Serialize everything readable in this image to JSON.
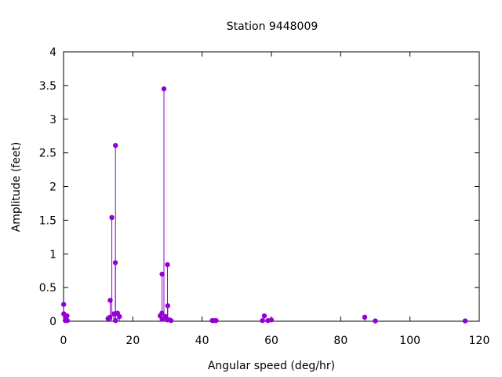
{
  "chart_data": {
    "type": "scatter",
    "style": "impulses-with-points",
    "title": "Station 9448009",
    "xlabel": "Angular speed (deg/hr)",
    "ylabel": "Amplitude (feet)",
    "xlim": [
      0,
      120
    ],
    "ylim": [
      0,
      4
    ],
    "x_ticks": [
      "0",
      "20",
      "40",
      "60",
      "80",
      "100",
      "120"
    ],
    "y_ticks": [
      "0",
      "0.5",
      "1",
      "1.5",
      "2",
      "2.5",
      "3",
      "3.5",
      "4"
    ],
    "grid": false,
    "legend": "none",
    "color": "#9400d3",
    "points": [
      {
        "x": 0.04,
        "y": 0.25
      },
      {
        "x": 0.08,
        "y": 0.11
      },
      {
        "x": 0.5,
        "y": 0.01
      },
      {
        "x": 0.55,
        "y": 0.05
      },
      {
        "x": 1.0,
        "y": 0.08
      },
      {
        "x": 1.1,
        "y": 0.01
      },
      {
        "x": 12.85,
        "y": 0.04
      },
      {
        "x": 13.4,
        "y": 0.06
      },
      {
        "x": 13.47,
        "y": 0.31
      },
      {
        "x": 13.94,
        "y": 1.54
      },
      {
        "x": 14.49,
        "y": 0.11
      },
      {
        "x": 14.9,
        "y": 0.11
      },
      {
        "x": 14.96,
        "y": 0.87
      },
      {
        "x": 15.0,
        "y": 2.61
      },
      {
        "x": 15.0,
        "y": 0.01
      },
      {
        "x": 15.59,
        "y": 0.12
      },
      {
        "x": 16.14,
        "y": 0.07
      },
      {
        "x": 27.9,
        "y": 0.08
      },
      {
        "x": 28.4,
        "y": 0.12
      },
      {
        "x": 28.44,
        "y": 0.7
      },
      {
        "x": 28.51,
        "y": 0.03
      },
      {
        "x": 28.98,
        "y": 3.45
      },
      {
        "x": 29.46,
        "y": 0.07
      },
      {
        "x": 29.53,
        "y": 0.06
      },
      {
        "x": 29.96,
        "y": 0.02
      },
      {
        "x": 30.0,
        "y": 0.84
      },
      {
        "x": 30.08,
        "y": 0.23
      },
      {
        "x": 30.6,
        "y": 0.02
      },
      {
        "x": 31.02,
        "y": 0.01
      },
      {
        "x": 42.93,
        "y": 0.01
      },
      {
        "x": 43.48,
        "y": 0.01
      },
      {
        "x": 44.03,
        "y": 0.01
      },
      {
        "x": 57.42,
        "y": 0.01
      },
      {
        "x": 57.97,
        "y": 0.08
      },
      {
        "x": 58.98,
        "y": 0.01
      },
      {
        "x": 59.98,
        "y": 0.02
      },
      {
        "x": 86.95,
        "y": 0.06
      },
      {
        "x": 90.0,
        "y": 0.005
      },
      {
        "x": 115.94,
        "y": 0.005
      }
    ]
  }
}
